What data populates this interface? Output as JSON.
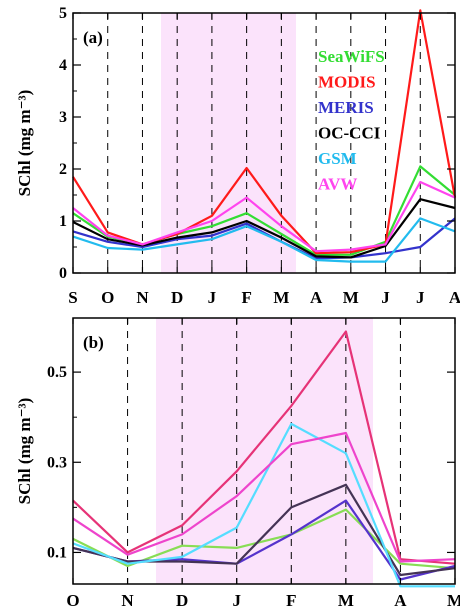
{
  "chart_data": [
    {
      "type": "line",
      "panel_label": "(a)",
      "ylabel": "SChl (mg m⁻³)",
      "categories": [
        "S",
        "O",
        "N",
        "D",
        "J",
        "F",
        "M",
        "A",
        "M",
        "J",
        "J",
        "A"
      ],
      "ylim": [
        0,
        5
      ],
      "yticks": [
        "0",
        "1",
        "2",
        "3",
        "4",
        "5"
      ],
      "shaded_months": [
        "D",
        "J",
        "F",
        "M"
      ],
      "dashed_gridlines": true,
      "legend": "top-right, text labels colored by series",
      "series": [
        {
          "name": "SeaWiFS",
          "color": "#33dd33",
          "values": [
            1.15,
            0.7,
            0.55,
            0.75,
            0.9,
            1.15,
            0.75,
            0.35,
            0.35,
            0.6,
            2.05,
            1.5
          ]
        },
        {
          "name": "MODIS",
          "color": "#ff1a1a",
          "values": [
            1.85,
            0.78,
            0.55,
            0.75,
            1.1,
            2.02,
            1.1,
            0.38,
            0.4,
            0.55,
            5.05,
            1.45
          ]
        },
        {
          "name": "MERIS",
          "color": "#3333cc",
          "values": [
            0.8,
            0.6,
            0.5,
            0.65,
            0.72,
            0.95,
            0.6,
            0.28,
            0.3,
            0.38,
            0.5,
            1.05
          ]
        },
        {
          "name": "OC-CCI",
          "color": "#000000",
          "values": [
            0.98,
            0.65,
            0.53,
            0.68,
            0.78,
            1.0,
            0.68,
            0.32,
            0.3,
            0.52,
            1.42,
            1.25
          ]
        },
        {
          "name": "GSM",
          "color": "#22bbee",
          "values": [
            0.7,
            0.48,
            0.45,
            0.55,
            0.65,
            0.9,
            0.6,
            0.25,
            0.22,
            0.22,
            1.05,
            0.8
          ]
        },
        {
          "name": "AVW",
          "color": "#ff44ee",
          "values": [
            1.25,
            0.72,
            0.55,
            0.78,
            1.0,
            1.45,
            0.9,
            0.42,
            0.45,
            0.55,
            1.75,
            1.45
          ]
        }
      ]
    },
    {
      "type": "line",
      "panel_label": "(b)",
      "ylabel": "SChl (mg m⁻³)",
      "categories": [
        "O",
        "N",
        "D",
        "J",
        "F",
        "M",
        "A",
        "M"
      ],
      "ylim": [
        0.03,
        0.62
      ],
      "yticks": [
        "0.1",
        "0.3",
        "0.5"
      ],
      "shaded_months": [
        "D",
        "J",
        "F",
        "M"
      ],
      "dashed_gridlines": true,
      "series": [
        {
          "name": "SeaWiFS",
          "color": "#88dd55",
          "values": [
            0.13,
            0.07,
            0.115,
            0.11,
            0.14,
            0.195,
            0.075,
            0.065
          ]
        },
        {
          "name": "MODIS",
          "color": "#e63377",
          "values": [
            0.215,
            0.1,
            0.16,
            0.28,
            0.425,
            0.59,
            0.085,
            0.075
          ]
        },
        {
          "name": "MERIS",
          "color": "#5533cc",
          "values": [
            0.11,
            0.08,
            0.085,
            0.075,
            0.14,
            0.215,
            0.04,
            0.07
          ]
        },
        {
          "name": "OC-CCI",
          "color": "#443355",
          "values": [
            0.11,
            0.08,
            0.08,
            0.075,
            0.2,
            0.25,
            0.05,
            0.065
          ]
        },
        {
          "name": "GSM",
          "color": "#55ddff",
          "values": [
            0.12,
            0.075,
            0.09,
            0.155,
            0.385,
            0.32,
            0.025,
            0.025
          ]
        },
        {
          "name": "AVW",
          "color": "#ee44cc",
          "values": [
            0.175,
            0.095,
            0.14,
            0.225,
            0.34,
            0.365,
            0.08,
            0.085
          ]
        }
      ]
    }
  ]
}
